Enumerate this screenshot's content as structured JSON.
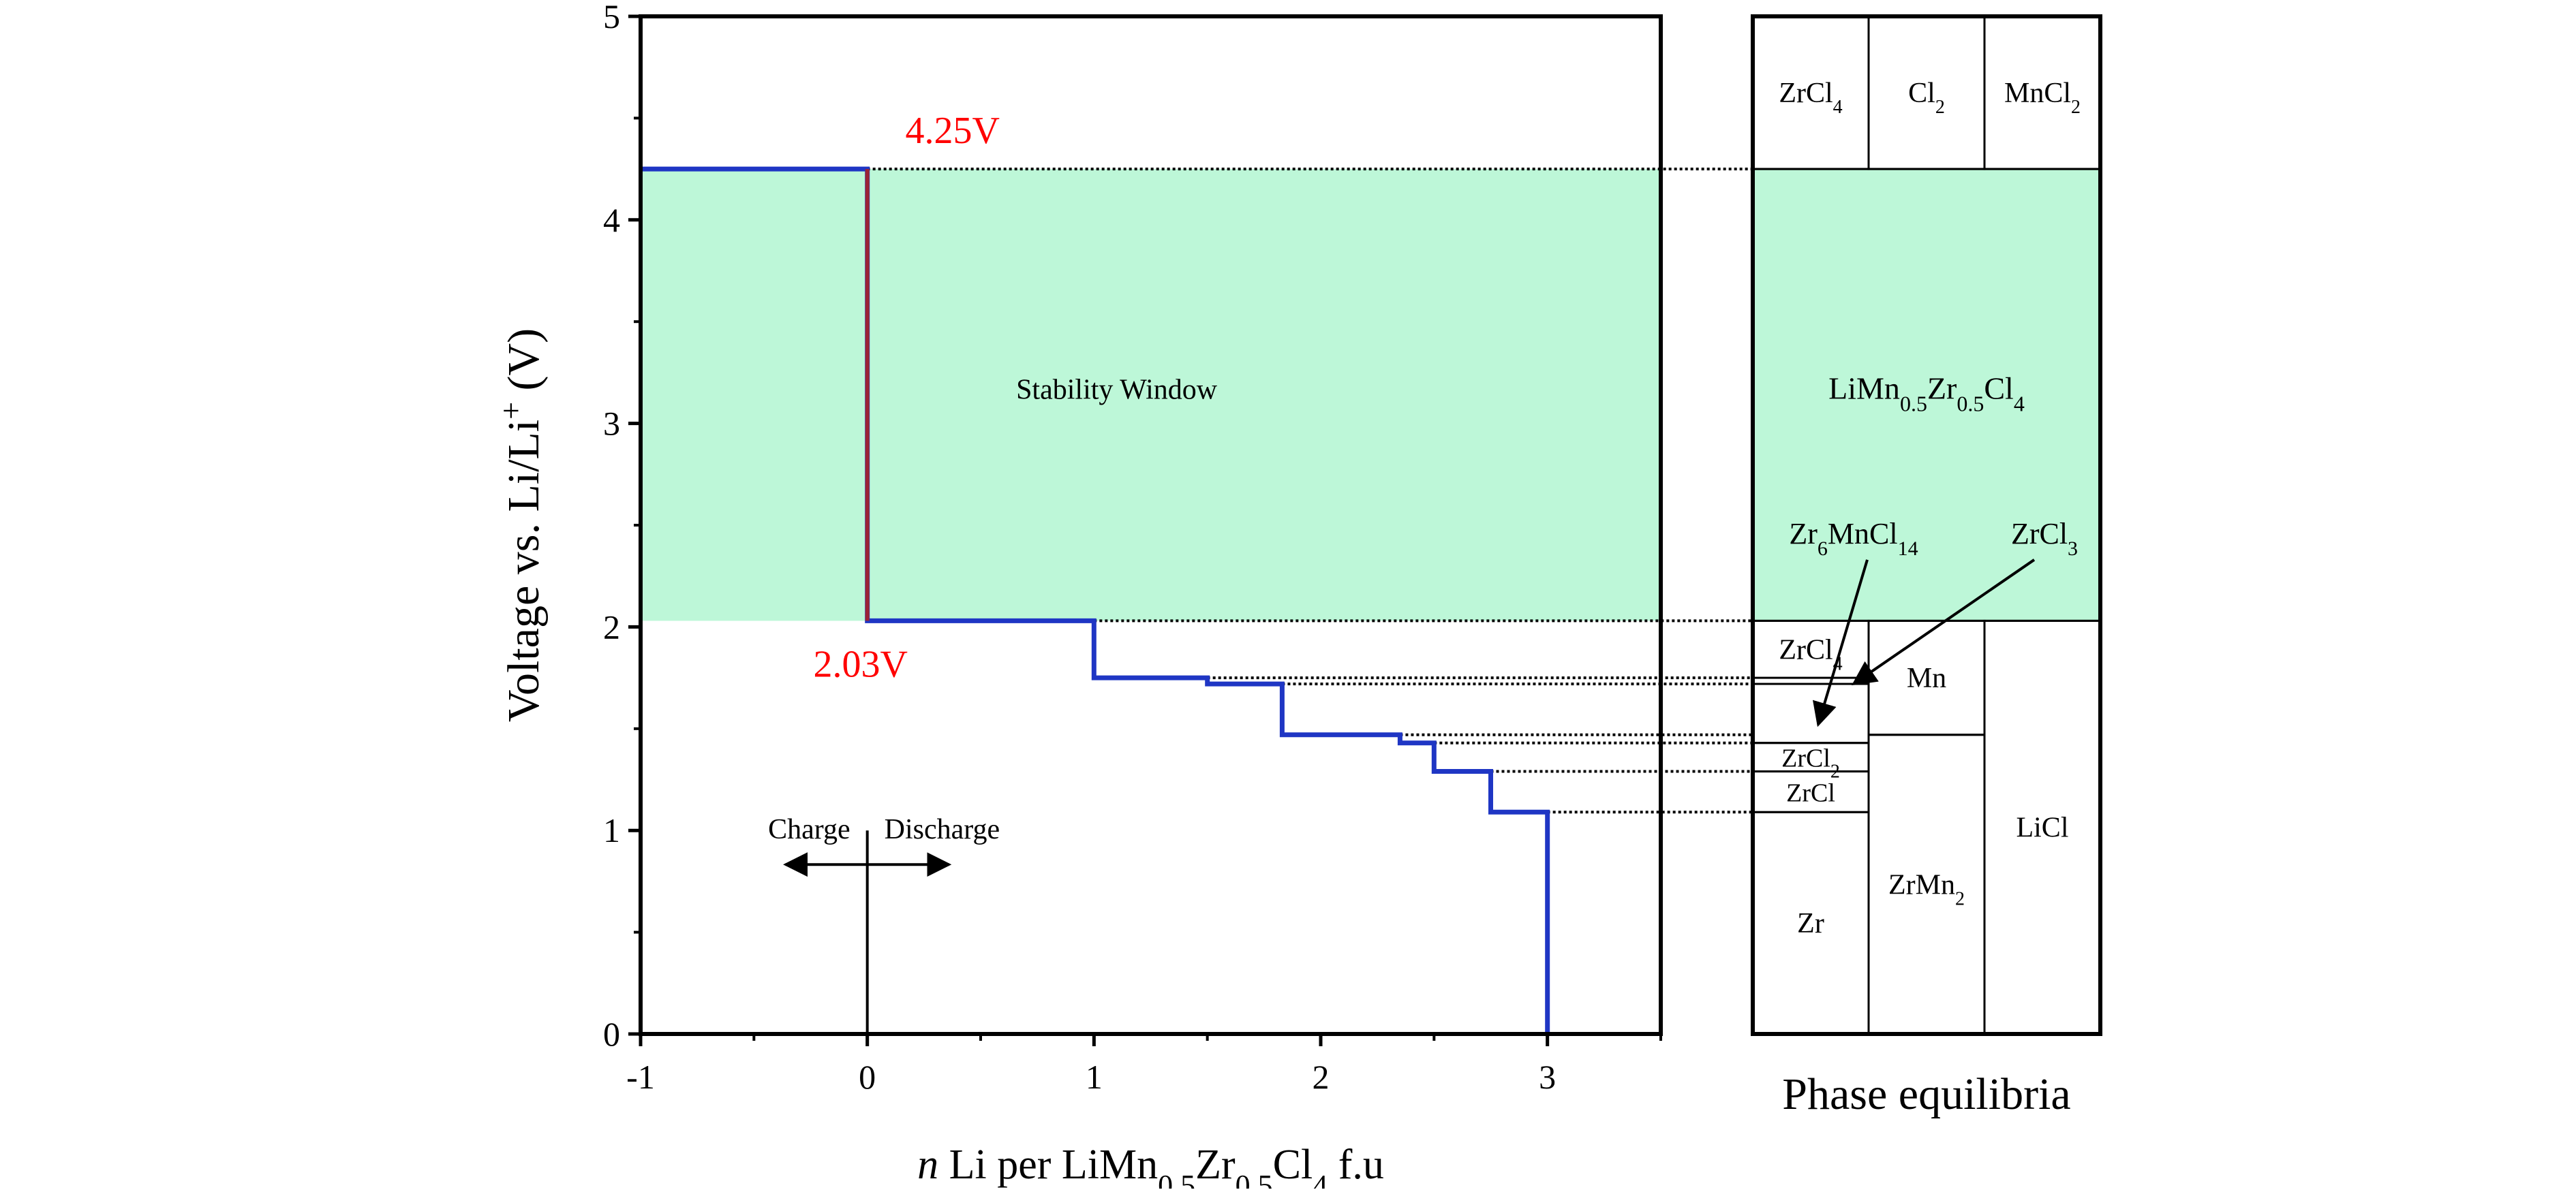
{
  "chart_data": {
    "type": "line",
    "xlabel": {
      "italic": "n",
      "text": " Li per LiMn",
      "sub1": "0.5",
      "mid": "Zr",
      "sub2": "0.5",
      "mid2": "Cl",
      "sub3": "4",
      "end": " f.u"
    },
    "ylabel": {
      "text": "Voltage vs. Li/Li",
      "sup": "+",
      "end": " (V)"
    },
    "xlim": [
      -1,
      3.5
    ],
    "ylim": [
      0,
      5
    ],
    "x_ticks": [
      -1,
      0,
      1,
      2,
      3
    ],
    "y_ticks": [
      0,
      1,
      2,
      3,
      4,
      5
    ],
    "x_tick_labels": [
      "-1",
      "0",
      "1",
      "2",
      "3"
    ],
    "y_tick_labels": [
      "0",
      "1",
      "2",
      "3",
      "4",
      "5"
    ],
    "stability_window": {
      "ymin": 2.03,
      "ymax": 4.25,
      "label": "Stability Window",
      "color": "#bdf7d8"
    },
    "voltage_profile": {
      "color": "#1f36c4",
      "points": [
        [
          -1,
          4.25
        ],
        [
          0,
          4.25
        ],
        [
          0,
          2.03
        ],
        [
          1,
          2.03
        ],
        [
          1,
          1.75
        ],
        [
          1.5,
          1.75
        ],
        [
          1.5,
          1.72
        ],
        [
          1.83,
          1.72
        ],
        [
          1.83,
          1.47
        ],
        [
          2.35,
          1.47
        ],
        [
          2.35,
          1.43
        ],
        [
          2.5,
          1.43
        ],
        [
          2.5,
          1.29
        ],
        [
          2.75,
          1.29
        ],
        [
          2.75,
          1.09
        ],
        [
          3,
          1.09
        ],
        [
          3,
          0
        ]
      ]
    },
    "vertical_segment": {
      "x": 0,
      "ymin": 2.03,
      "ymax": 4.25,
      "color": "#9b2335"
    },
    "annotations": [
      {
        "text": "4.25V",
        "x": 0,
        "y": 4.25,
        "color": "#ff0000"
      },
      {
        "text": "2.03V",
        "x": 0,
        "y": 2.03,
        "color": "#ff0000"
      }
    ],
    "charge_discharge": {
      "charge": "Charge",
      "discharge": "Discharge",
      "x": 0,
      "y": 1.0
    },
    "dotted_connectors": [
      4.25,
      2.03,
      1.75,
      1.72,
      1.47,
      1.43,
      1.29,
      1.09
    ],
    "phase_panel": {
      "title": "Phase equilibria",
      "columns": 3,
      "regions": [
        {
          "col": 0,
          "ymin": 4.25,
          "ymax": 5,
          "label": "ZrCl",
          "sub": "4"
        },
        {
          "col": 1,
          "ymin": 4.25,
          "ymax": 5,
          "label": "Cl",
          "sub": "2"
        },
        {
          "col": 2,
          "ymin": 4.25,
          "ymax": 5,
          "label": "MnCl",
          "sub": "2"
        },
        {
          "col": 0,
          "ymin": 1.75,
          "ymax": 2.03,
          "label": "ZrCl",
          "sub": "4"
        },
        {
          "col": 0,
          "ymin": 1.43,
          "ymax": 1.72,
          "label": "",
          "sub": ""
        },
        {
          "col": 0,
          "ymin": 1.29,
          "ymax": 1.43,
          "label": "ZrCl",
          "sub": "2"
        },
        {
          "col": 0,
          "ymin": 1.09,
          "ymax": 1.29,
          "label": "ZrCl",
          "sub": ""
        },
        {
          "col": 0,
          "ymin": 0,
          "ymax": 1.09,
          "label": "Zr",
          "sub": ""
        },
        {
          "col": 1,
          "ymin": 1.47,
          "ymax": 2.03,
          "label": "Mn",
          "sub": ""
        },
        {
          "col": 1,
          "ymin": 0,
          "ymax": 1.47,
          "label": "ZrMn",
          "sub": "2"
        },
        {
          "col": 2,
          "ymin": 0,
          "ymax": 2.03,
          "label": "LiCl",
          "sub": ""
        }
      ],
      "stable_label": {
        "a": "LiMn",
        "s1": "0.5",
        "b": "Zr",
        "s2": "0.5",
        "c": "Cl",
        "s3": "4"
      },
      "arrow_labels": [
        {
          "a": "Zr",
          "s1": "6",
          "b": "MnCl",
          "s2": "14"
        },
        {
          "a": "ZrCl",
          "s1": "3"
        }
      ]
    }
  }
}
